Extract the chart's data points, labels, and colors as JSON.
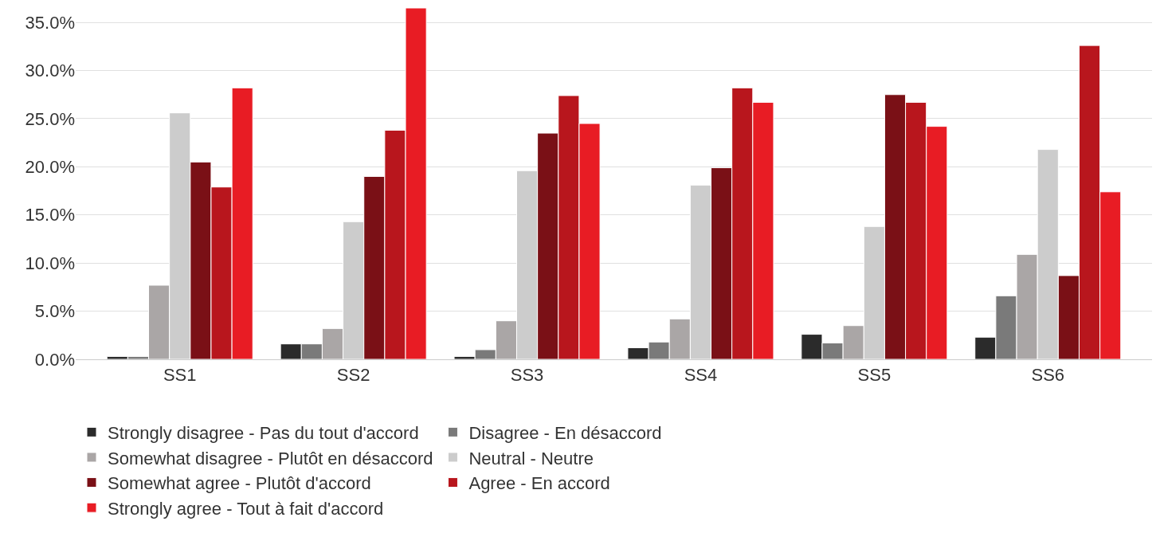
{
  "chart_data": {
    "type": "bar",
    "categories": [
      "SS1",
      "SS2",
      "SS3",
      "SS4",
      "SS5",
      "SS6"
    ],
    "series": [
      {
        "name": "Strongly disagree - Pas du tout d'accord",
        "color": "#2b2b2b",
        "values": [
          0.3,
          1.6,
          0.3,
          1.2,
          2.6,
          2.3
        ]
      },
      {
        "name": "Disagree - En désaccord",
        "color": "#7a7a7a",
        "values": [
          0.3,
          1.6,
          1.0,
          1.8,
          1.7,
          6.6
        ]
      },
      {
        "name": "Somewhat disagree - Plutôt en désaccord",
        "color": "#aaa6a6",
        "values": [
          7.7,
          3.2,
          4.0,
          4.2,
          3.5,
          10.9
        ]
      },
      {
        "name": "Neutral - Neutre",
        "color": "#cccccc",
        "values": [
          25.6,
          14.3,
          19.6,
          18.1,
          13.8,
          21.8
        ]
      },
      {
        "name": "Somewhat agree - Plutôt d'accord",
        "color": "#7a1016",
        "values": [
          20.5,
          19.0,
          23.5,
          19.9,
          27.5,
          8.7
        ]
      },
      {
        "name": "Agree - En accord",
        "color": "#b8161d",
        "values": [
          17.9,
          23.8,
          27.4,
          28.2,
          26.7,
          32.6
        ]
      },
      {
        "name": "Strongly agree - Tout à fait d'accord",
        "color": "#e81c24",
        "values": [
          28.2,
          36.5,
          24.5,
          26.7,
          24.2,
          17.4
        ]
      }
    ],
    "ylim": [
      0,
      36.5
    ],
    "yticks": [
      {
        "value": 0,
        "label": "0.0%"
      },
      {
        "value": 5,
        "label": "5.0%"
      },
      {
        "value": 10,
        "label": "10.0%"
      },
      {
        "value": 15,
        "label": "15.0%"
      },
      {
        "value": 20,
        "label": "20.0%"
      },
      {
        "value": 25,
        "label": "25.0%"
      },
      {
        "value": 30,
        "label": "30.0%"
      },
      {
        "value": 35,
        "label": "35.0%"
      }
    ],
    "grid": "y",
    "legend": "bottom"
  }
}
